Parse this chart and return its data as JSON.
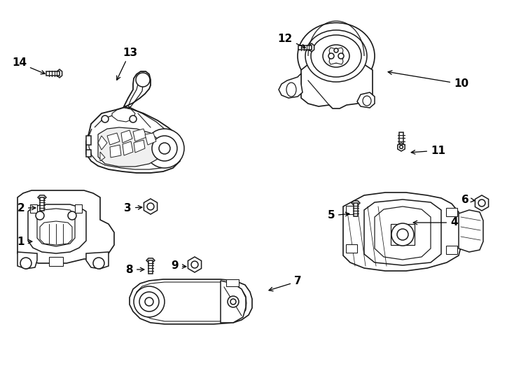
{
  "background_color": "#ffffff",
  "line_color": "#1a1a1a",
  "line_width": 1.1,
  "fig_width": 7.34,
  "fig_height": 5.4
}
